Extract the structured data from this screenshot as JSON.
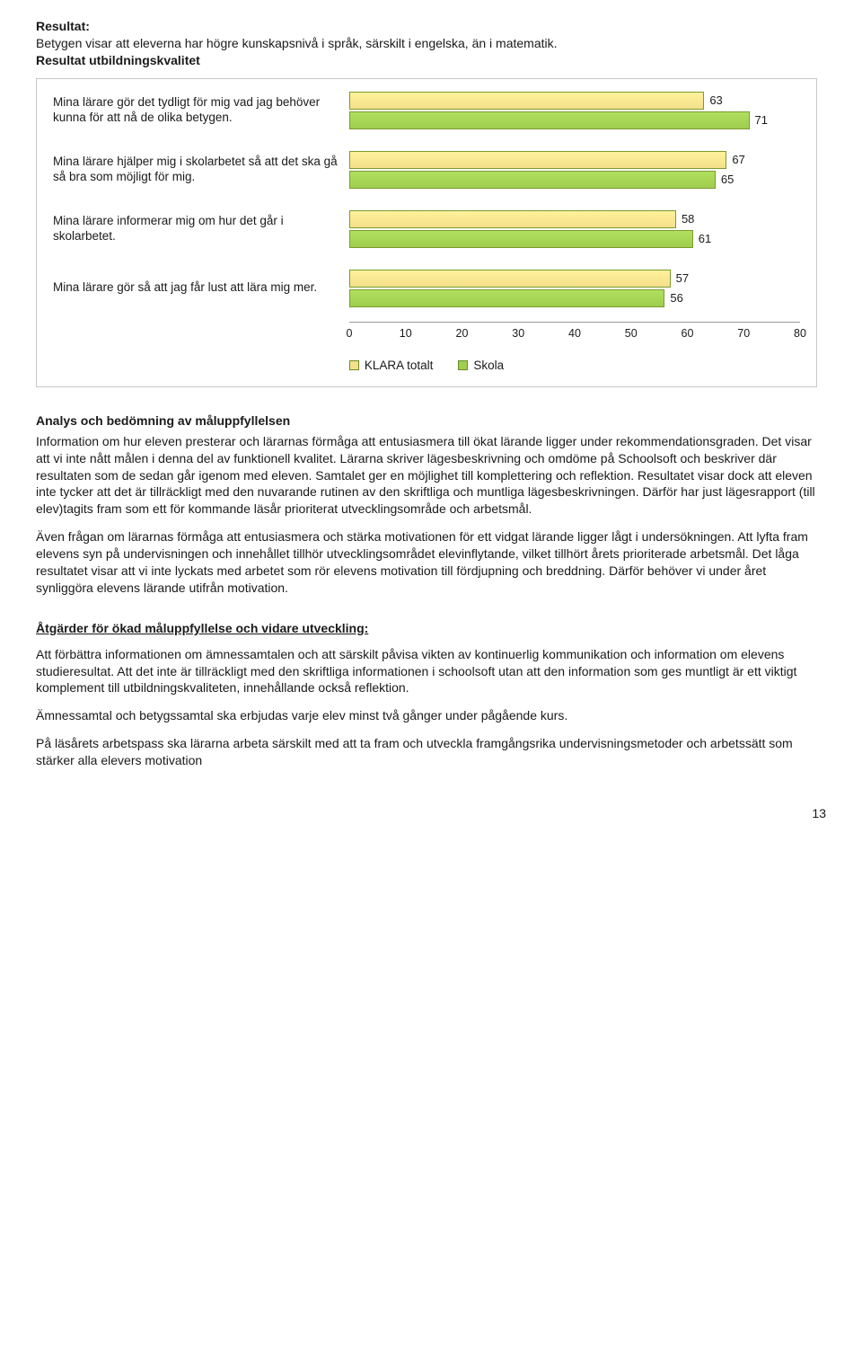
{
  "header": {
    "resultat_label": "Resultat:",
    "resultat_text": "Betygen visar att eleverna har högre kunskapsnivå i språk, särskilt i engelska, än i matematik.",
    "chart_title": "Resultat utbildningskvalitet"
  },
  "chart": {
    "type": "bar",
    "bar_color_totalt": "#f4e08a",
    "bar_color_skola": "#9fce4e",
    "bar_border": "#7a9b2f",
    "value_fontsize": 13,
    "label_fontsize": 13.5,
    "xlim": [
      0,
      80
    ],
    "xtick_step": 10,
    "xticks": [
      "0",
      "10",
      "20",
      "30",
      "40",
      "50",
      "60",
      "70",
      "80"
    ],
    "legend": {
      "totalt": "KLARA totalt",
      "skola": "Skola"
    },
    "rows": [
      {
        "label": "Mina lärare gör det tydligt för mig vad jag behöver kunna för att nå de olika betygen.",
        "totalt": 63,
        "skola": 71
      },
      {
        "label": "Mina lärare hjälper mig i skolarbetet så att det ska gå så bra som möjligt för mig.",
        "totalt": 67,
        "skola": 65
      },
      {
        "label": "Mina lärare informerar mig om hur det går i skolarbetet.",
        "totalt": 58,
        "skola": 61
      },
      {
        "label": "Mina lärare gör så att jag får lust att lära mig mer.",
        "totalt": 57,
        "skola": 56
      }
    ]
  },
  "analys": {
    "heading": "Analys och bedömning av måluppfyllelsen",
    "p1": "Information om hur eleven presterar och lärarnas förmåga att entusiasmera till ökat lärande ligger under rekommendationsgraden. Det visar att vi inte nått målen i denna del av funktionell kvalitet. Lärarna skriver lägesbeskrivning och omdöme på Schoolsoft och beskriver där resultaten som de sedan går igenom med eleven. Samtalet ger en möjlighet till komplettering och reflektion. Resultatet visar dock att eleven inte tycker att det är tillräckligt med den nuvarande rutinen av den skriftliga och muntliga lägesbeskrivningen. Därför har just lägesrapport (till elev)tagits fram som ett för kommande läsår prioriterat utvecklingsområde och arbetsmål.",
    "p2": "Även frågan om lärarnas förmåga att entusiasmera och stärka motivationen för ett vidgat lärande ligger lågt i undersökningen. Att lyfta fram elevens syn på undervisningen och innehållet tillhör utvecklingsområdet elevinflytande, vilket tillhört årets prioriterade arbetsmål. Det låga resultatet visar att vi inte lyckats med arbetet som rör elevens motivation till fördjupning och breddning. Därför behöver vi under året synliggöra elevens lärande utifrån motivation."
  },
  "atgarder": {
    "heading": "Åtgärder för ökad måluppfyllelse och vidare utveckling:",
    "p1": "Att förbättra informationen om ämnessamtalen och att särskilt påvisa vikten av kontinuerlig kommunikation och information om elevens studieresultat. Att det inte är tillräckligt med den skriftliga informationen i schoolsoft utan att den information som ges muntligt är ett viktigt komplement till utbildningskvaliteten, innehållande också reflektion.",
    "p2": "Ämnessamtal och betygssamtal ska erbjudas varje elev minst två gånger under pågående kurs.",
    "p3": "På läsårets arbetspass ska lärarna arbeta särskilt med att ta fram och utveckla framgångsrika undervisningsmetoder och arbetssätt som stärker alla elevers motivation"
  },
  "page_number": "13"
}
